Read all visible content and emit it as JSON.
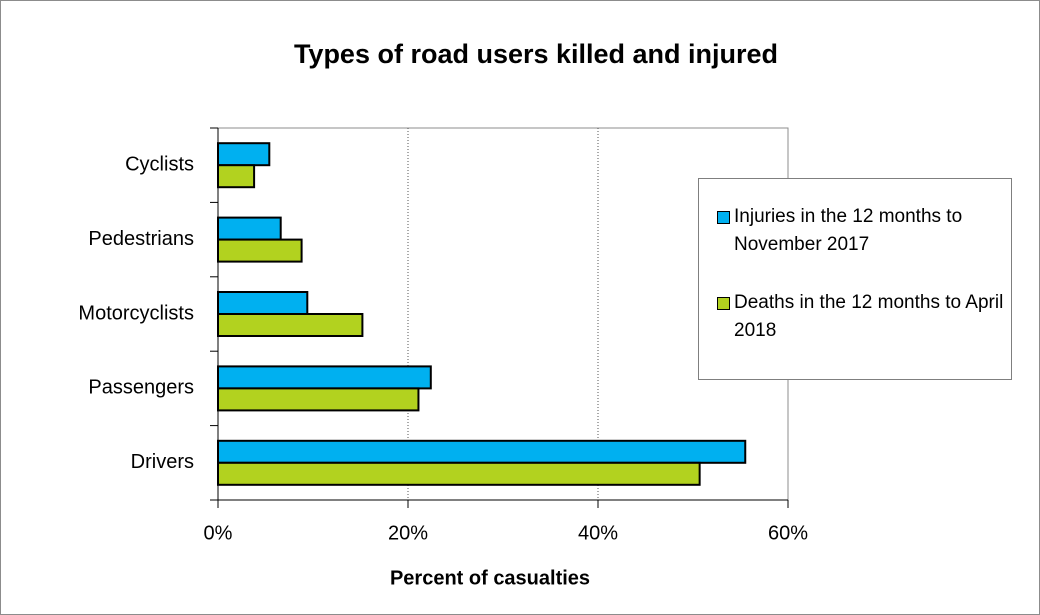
{
  "chart_data": {
    "type": "hbar",
    "title": "Types of road users killed and injured",
    "x_label": "Percent of casualties",
    "categories": [
      "Cyclists",
      "Pedestrians",
      "Motorcyclists",
      "Passengers",
      "Drivers"
    ],
    "series": [
      {
        "name": "Injuries in the 12 months to November 2017",
        "color": "#00b0f0",
        "values": [
          5.4,
          6.6,
          9.4,
          22.4,
          55.5
        ]
      },
      {
        "name": "Deaths in the 12 months to April 2018",
        "color": "#b2d21f",
        "values": [
          3.8,
          8.8,
          15.2,
          21.1,
          50.7
        ]
      }
    ],
    "xlim": [
      0,
      60
    ],
    "xticks": [
      {
        "value": 0,
        "label": "0%"
      },
      {
        "value": 20,
        "label": "20%"
      },
      {
        "value": 40,
        "label": "40%"
      },
      {
        "value": 60,
        "label": "60%"
      }
    ],
    "grid": true
  }
}
